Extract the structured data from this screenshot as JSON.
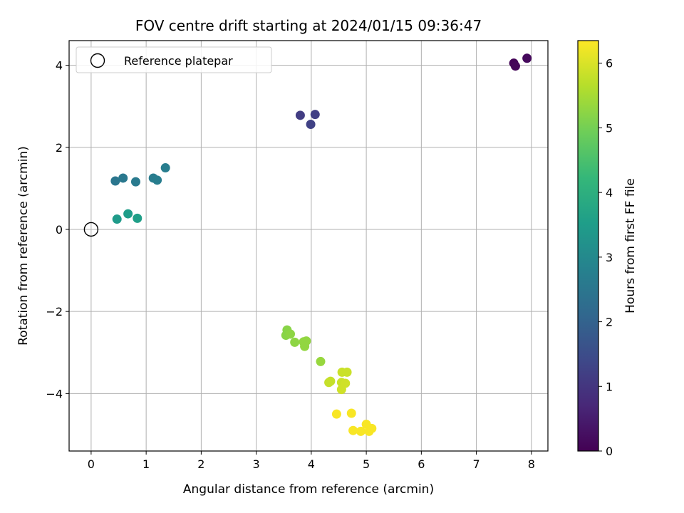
{
  "chart_data": {
    "type": "scatter",
    "title": "FOV centre drift starting at 2024/01/15 09:36:47",
    "xlabel": "Angular distance from reference (arcmin)",
    "ylabel": "Rotation from reference (arcmin)",
    "xlim": [
      -0.4,
      8.3
    ],
    "ylim": [
      -5.4,
      4.6
    ],
    "xticks": [
      0,
      1,
      2,
      3,
      4,
      5,
      6,
      7,
      8
    ],
    "yticks": [
      -4,
      -2,
      0,
      2,
      4
    ],
    "grid": true,
    "legend": {
      "placement": "upper-left",
      "entries": [
        "Reference platepar"
      ]
    },
    "reference_point": {
      "x": 0,
      "y": 0,
      "label": "Reference platepar"
    },
    "colorbar": {
      "label": "Hours from first FF file",
      "range": [
        0,
        6.35
      ],
      "ticks": [
        0,
        1,
        2,
        3,
        4,
        5,
        6
      ],
      "colormap": [
        "#440154",
        "#482878",
        "#3e4989",
        "#31688e",
        "#26828e",
        "#1f9e89",
        "#35b779",
        "#6ece58",
        "#b5de2b",
        "#fde725"
      ]
    },
    "points": [
      {
        "x": 7.68,
        "y": 4.05,
        "c": 0.05
      },
      {
        "x": 7.71,
        "y": 3.98,
        "c": 0.1
      },
      {
        "x": 7.92,
        "y": 4.17,
        "c": 0.15
      },
      {
        "x": 3.8,
        "y": 2.78,
        "c": 1.15
      },
      {
        "x": 4.07,
        "y": 2.8,
        "c": 1.2
      },
      {
        "x": 3.99,
        "y": 2.56,
        "c": 1.25
      },
      {
        "x": 0.44,
        "y": 1.18,
        "c": 2.5
      },
      {
        "x": 0.58,
        "y": 1.25,
        "c": 2.55
      },
      {
        "x": 0.81,
        "y": 1.16,
        "c": 2.6
      },
      {
        "x": 1.13,
        "y": 1.25,
        "c": 2.65
      },
      {
        "x": 1.2,
        "y": 1.2,
        "c": 2.7
      },
      {
        "x": 1.35,
        "y": 1.5,
        "c": 2.7
      },
      {
        "x": 0.47,
        "y": 0.25,
        "c": 3.45
      },
      {
        "x": 0.67,
        "y": 0.38,
        "c": 3.5
      },
      {
        "x": 0.84,
        "y": 0.27,
        "c": 3.55
      },
      {
        "x": 3.56,
        "y": -2.45,
        "c": 5.2
      },
      {
        "x": 3.54,
        "y": -2.58,
        "c": 5.2
      },
      {
        "x": 3.62,
        "y": -2.55,
        "c": 5.25
      },
      {
        "x": 3.7,
        "y": -2.75,
        "c": 5.25
      },
      {
        "x": 3.86,
        "y": -2.74,
        "c": 5.3
      },
      {
        "x": 3.91,
        "y": -2.72,
        "c": 5.3
      },
      {
        "x": 3.88,
        "y": -2.85,
        "c": 5.3
      },
      {
        "x": 4.17,
        "y": -3.22,
        "c": 5.35
      },
      {
        "x": 4.32,
        "y": -3.73,
        "c": 5.8
      },
      {
        "x": 4.35,
        "y": -3.7,
        "c": 5.8
      },
      {
        "x": 4.56,
        "y": -3.48,
        "c": 5.85
      },
      {
        "x": 4.65,
        "y": -3.48,
        "c": 5.85
      },
      {
        "x": 4.55,
        "y": -3.73,
        "c": 5.85
      },
      {
        "x": 4.62,
        "y": -3.75,
        "c": 5.9
      },
      {
        "x": 4.55,
        "y": -3.9,
        "c": 5.9
      },
      {
        "x": 4.46,
        "y": -4.5,
        "c": 6.3
      },
      {
        "x": 4.73,
        "y": -4.48,
        "c": 6.3
      },
      {
        "x": 5.0,
        "y": -4.75,
        "c": 6.3
      },
      {
        "x": 4.76,
        "y": -4.9,
        "c": 6.3
      },
      {
        "x": 4.9,
        "y": -4.92,
        "c": 6.3
      },
      {
        "x": 5.05,
        "y": -4.92,
        "c": 6.3
      },
      {
        "x": 5.1,
        "y": -4.85,
        "c": 6.3
      }
    ]
  }
}
